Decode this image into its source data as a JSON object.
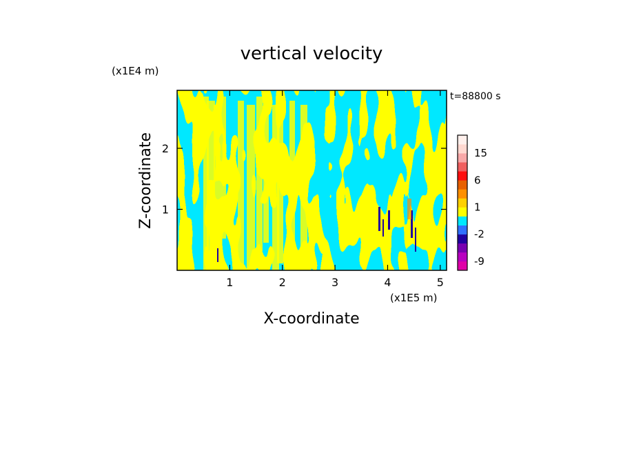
{
  "chart_data": {
    "type": "heatmap",
    "title": "vertical velocity",
    "xlabel": "X-coordinate",
    "ylabel": "Z-coordinate",
    "x_scale_label": "(x1E5 m)",
    "y_scale_label": "(x1E4 m)",
    "time_label": "t=88800 s",
    "xlim": [
      0,
      5.12
    ],
    "ylim": [
      0,
      2.95
    ],
    "x_ticks": [
      1,
      2,
      3,
      4,
      5
    ],
    "y_ticks": [
      1,
      2
    ],
    "colorbar": {
      "levels": [
        -12,
        -9,
        -6,
        -3,
        -2,
        -1,
        0,
        1,
        2,
        3,
        6,
        9,
        12,
        15,
        18,
        24
      ],
      "colors": [
        "#e000a8",
        "#b800c0",
        "#7800b0",
        "#2000a0",
        "#3070ff",
        "#00e8ff",
        "#ffff00",
        "#ffd000",
        "#ff9000",
        "#e86000",
        "#ff1010",
        "#f06060",
        "#f8a8a8",
        "#ffd8d0",
        "#fff0ec"
      ],
      "tick_labels": [
        {
          "value": -9,
          "label": "-9"
        },
        {
          "value": -2,
          "label": "-2"
        },
        {
          "value": 1,
          "label": "1"
        },
        {
          "value": 6,
          "label": "6"
        },
        {
          "value": 15,
          "label": "15"
        }
      ]
    },
    "field_colors": {
      "negative": "#00e8ff",
      "positive": "#ffff00",
      "strong_negative": "#2000a0",
      "strong_positive": "#ff9000"
    }
  }
}
